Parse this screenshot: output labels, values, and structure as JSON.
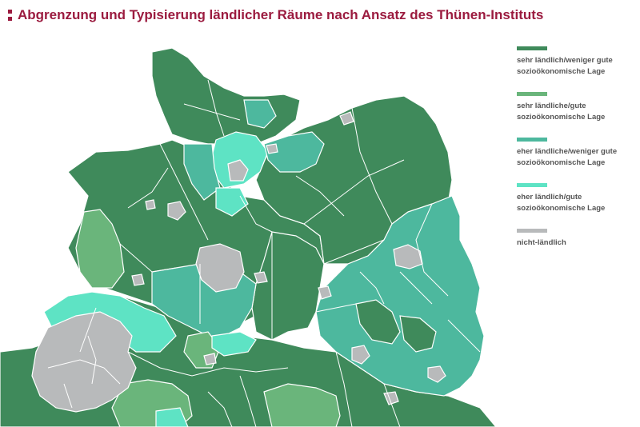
{
  "header": {
    "title": "Abgrenzung und Typisierung ländlicher Räume nach Ansatz des Thünen-Instituts"
  },
  "legend": {
    "items": [
      {
        "label": "sehr ländlich/weniger gute\nsozioökonomische Lage",
        "color": "#3f8a5b"
      },
      {
        "label": "sehr ländliche/gute\nsozioökonomische Lage",
        "color": "#6ab57b"
      },
      {
        "label": "eher ländliche/weniger gute\nsozioökonomische Lage",
        "color": "#4db89e"
      },
      {
        "label": "eher ländlich/gute\nsozioökonomische Lage",
        "color": "#5ee3c4"
      },
      {
        "label": "nicht-ländlich",
        "color": "#b8babb"
      }
    ]
  },
  "map_colors": {
    "dark_green": "#3f8a5b",
    "mid_green": "#6ab57b",
    "teal": "#4db89e",
    "light_teal": "#5ee3c4",
    "gray": "#b8babb",
    "border": "#ffffff"
  }
}
